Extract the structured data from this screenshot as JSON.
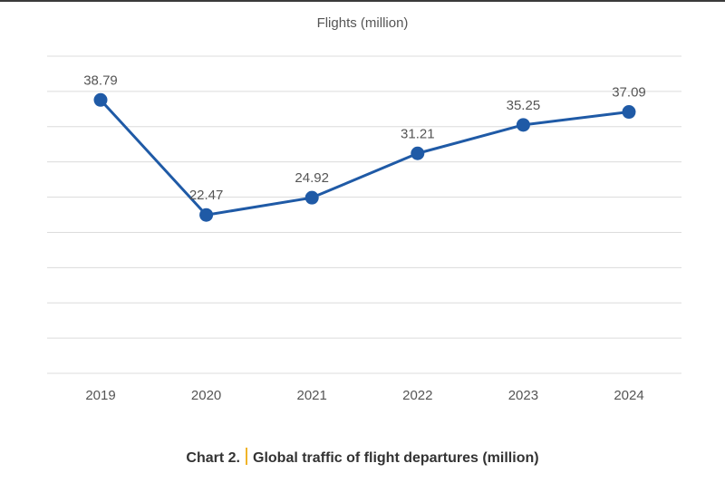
{
  "chart_data": {
    "type": "line",
    "title": "Flights (million)",
    "categories": [
      "2019",
      "2020",
      "2021",
      "2022",
      "2023",
      "2024"
    ],
    "series": [
      {
        "values": [
          38.79,
          22.47,
          24.92,
          31.21,
          35.25,
          37.09
        ]
      }
    ],
    "data_labels": [
      "38.79",
      "22.47",
      "24.92",
      "31.21",
      "35.25",
      "37.09"
    ],
    "ylim": [
      0,
      45
    ],
    "grid": true,
    "y_tick_labels_visible": false,
    "colors": {
      "line": "#1f5aa6",
      "grid": "#dcdcdc",
      "label": "#555555"
    }
  },
  "caption": {
    "number": "Chart 2.",
    "text": "Global traffic of flight departures (million)"
  }
}
